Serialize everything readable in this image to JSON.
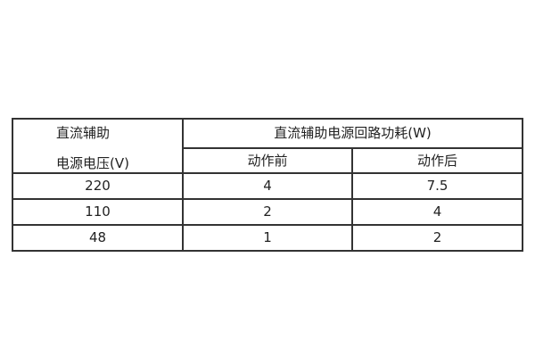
{
  "table": {
    "header": {
      "col1_line1": "直流辅助",
      "col1_line2": "电源电压(V)",
      "group": "直流辅助电源回路功耗(W)",
      "sub1": "动作前",
      "sub2": "动作后"
    },
    "rows": [
      {
        "voltage": "220",
        "before": "4",
        "after": "7.5"
      },
      {
        "voltage": "110",
        "before": "2",
        "after": "4"
      },
      {
        "voltage": "48",
        "before": "1",
        "after": "2"
      }
    ]
  }
}
